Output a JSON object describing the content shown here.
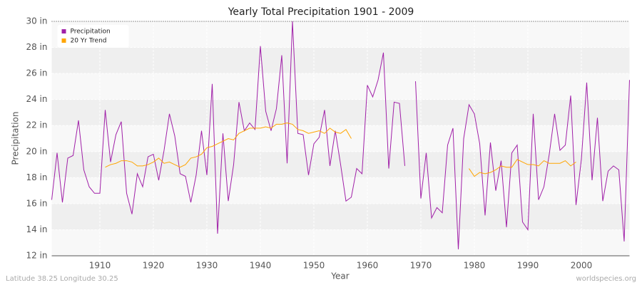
{
  "chart_data": {
    "type": "line",
    "title": "Yearly Total Precipitation 1901 - 2009",
    "x_label": "Year",
    "y_label": "Precipitation",
    "footer_left": "Latitude 38.25 Longitude 30.25",
    "footer_right": "worldspecies.org",
    "x": [
      1901,
      1902,
      1903,
      1904,
      1905,
      1906,
      1907,
      1908,
      1909,
      1910,
      1911,
      1912,
      1913,
      1914,
      1915,
      1916,
      1917,
      1918,
      1919,
      1920,
      1921,
      1922,
      1923,
      1924,
      1925,
      1926,
      1927,
      1928,
      1929,
      1930,
      1931,
      1932,
      1933,
      1934,
      1935,
      1936,
      1937,
      1938,
      1939,
      1940,
      1941,
      1942,
      1943,
      1944,
      1945,
      1946,
      1947,
      1948,
      1949,
      1950,
      1951,
      1952,
      1953,
      1954,
      1955,
      1956,
      1957,
      1958,
      1959,
      1960,
      1961,
      1962,
      1963,
      1964,
      1965,
      1966,
      1967,
      1968,
      1969,
      1970,
      1971,
      1972,
      1973,
      1974,
      1975,
      1976,
      1977,
      1978,
      1979,
      1980,
      1981,
      1982,
      1983,
      1984,
      1985,
      1986,
      1987,
      1988,
      1989,
      1990,
      1991,
      1992,
      1993,
      1994,
      1995,
      1996,
      1997,
      1998,
      1999,
      2000,
      2001,
      2002,
      2003,
      2004,
      2005,
      2006,
      2007,
      2008,
      2009
    ],
    "series": [
      {
        "name": "Precipitation",
        "color": "#a020a8",
        "values": [
          16.3,
          19.9,
          16.1,
          19.5,
          19.7,
          22.4,
          18.6,
          17.3,
          16.8,
          16.8,
          23.2,
          19.2,
          21.3,
          22.3,
          16.8,
          15.2,
          18.3,
          17.3,
          19.6,
          19.8,
          17.8,
          20.1,
          22.9,
          21.2,
          18.3,
          18.1,
          16.1,
          18.2,
          21.6,
          18.2,
          25.2,
          13.7,
          21.4,
          16.2,
          19.0,
          23.8,
          21.6,
          22.2,
          21.7,
          28.1,
          23.1,
          21.6,
          23.3,
          27.4,
          19.1,
          30.0,
          21.4,
          21.3,
          18.2,
          20.6,
          21.1,
          23.2,
          18.9,
          21.6,
          19.0,
          16.2,
          16.5,
          18.7,
          18.3,
          25.1,
          24.2,
          25.5,
          27.6,
          18.7,
          23.8,
          23.7,
          18.9,
          null,
          25.4,
          16.4,
          19.9,
          14.9,
          15.7,
          15.3,
          20.5,
          21.8,
          12.5,
          21.0,
          23.6,
          22.9,
          20.6,
          15.1,
          20.7,
          17.0,
          19.3,
          14.2,
          19.9,
          20.5,
          14.6,
          14.0,
          22.9,
          16.3,
          17.3,
          19.8,
          22.9,
          20.1,
          20.5,
          24.3,
          15.9,
          19.4,
          25.3,
          17.8,
          22.6,
          16.2,
          18.5,
          18.9,
          18.6,
          13.1,
          25.5
        ]
      },
      {
        "name": "20 Yr Trend",
        "color": "#ffa500",
        "values": [
          null,
          null,
          null,
          null,
          null,
          null,
          null,
          null,
          null,
          null,
          18.8,
          19.0,
          19.1,
          19.3,
          19.3,
          19.2,
          18.9,
          18.9,
          19.0,
          19.2,
          19.5,
          19.1,
          19.2,
          19.0,
          18.8,
          19.0,
          19.5,
          19.6,
          19.8,
          20.3,
          20.4,
          20.6,
          20.8,
          21.0,
          20.9,
          21.4,
          21.6,
          21.8,
          21.8,
          21.8,
          21.9,
          21.8,
          22.1,
          22.1,
          22.2,
          22.1,
          21.7,
          21.6,
          21.4,
          21.5,
          21.6,
          21.4,
          21.8,
          21.5,
          21.4,
          21.7,
          21.0,
          null,
          null,
          null,
          null,
          null,
          null,
          null,
          null,
          null,
          null,
          null,
          null,
          null,
          null,
          null,
          null,
          null,
          null,
          null,
          null,
          null,
          18.7,
          18.1,
          18.4,
          18.3,
          18.4,
          18.6,
          18.9,
          18.8,
          18.8,
          19.4,
          19.2,
          19.0,
          19.0,
          18.9,
          19.3,
          19.1,
          19.1,
          19.1,
          19.3,
          18.9,
          19.2,
          null,
          null,
          null,
          null,
          null,
          null,
          null,
          null,
          null,
          null
        ]
      }
    ],
    "xlim": [
      1901,
      2009
    ],
    "xticks": [
      1910,
      1920,
      1930,
      1940,
      1950,
      1960,
      1970,
      1980,
      1990,
      2000
    ],
    "ylim": [
      12,
      30
    ],
    "yticks": [
      {
        "value": 12,
        "label": "12 in"
      },
      {
        "value": 14,
        "label": "14 in"
      },
      {
        "value": 16,
        "label": "16 in"
      },
      {
        "value": 18,
        "label": "18 in"
      },
      {
        "value": 20,
        "label": "20 in"
      },
      {
        "value": 22,
        "label": "22 in"
      },
      {
        "value": 24,
        "label": "24 in"
      },
      {
        "value": 26,
        "label": "26 in"
      },
      {
        "value": 28,
        "label": "28 in"
      },
      {
        "value": 30,
        "label": "30 in"
      }
    ],
    "grid": true,
    "legend": "top-left"
  }
}
